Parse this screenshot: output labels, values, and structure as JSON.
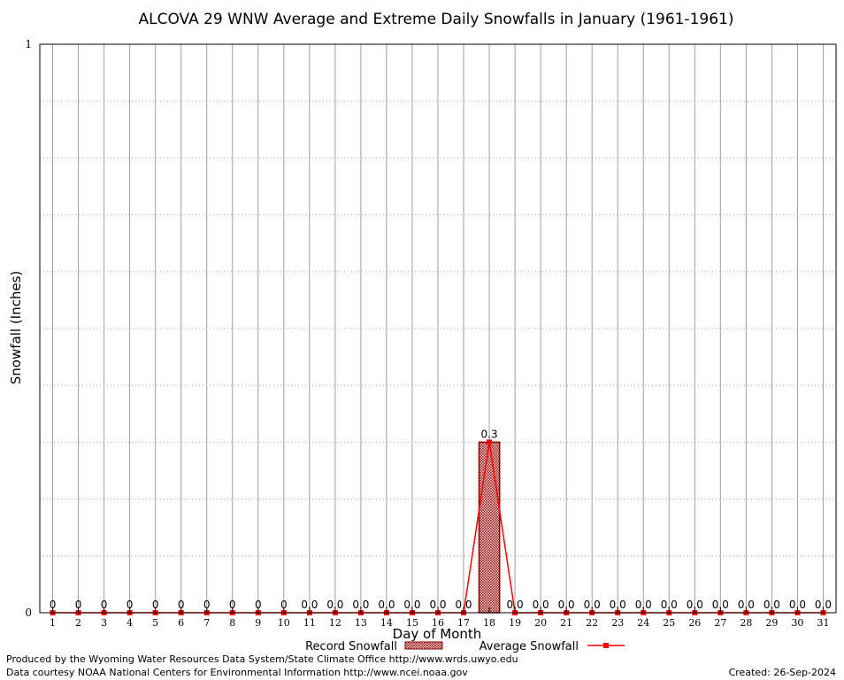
{
  "chart_data": {
    "type": "bar",
    "title": "ALCOVA 29 WNW Average and Extreme Daily Snowfalls in January (1961-1961)",
    "xlabel": "Day of Month",
    "ylabel": "Snowfall (Inches)",
    "ylim": [
      0,
      1
    ],
    "ytick_labels": [
      "0",
      "1"
    ],
    "grid": true,
    "legend_position": "bottom",
    "categories": [
      "1",
      "2",
      "3",
      "4",
      "5",
      "6",
      "7",
      "8",
      "9",
      "10",
      "11",
      "12",
      "13",
      "14",
      "15",
      "16",
      "17",
      "18",
      "19",
      "20",
      "21",
      "22",
      "23",
      "24",
      "25",
      "26",
      "27",
      "28",
      "29",
      "30",
      "31"
    ],
    "series": [
      {
        "name": "Record Snowfall",
        "kind": "bar",
        "color": "#b22222",
        "values": [
          0,
          0,
          0,
          0,
          0,
          0,
          0,
          0,
          0,
          0,
          0,
          0,
          0,
          0,
          0,
          0,
          0,
          0.3,
          0,
          0,
          0,
          0,
          0,
          0,
          0,
          0,
          0,
          0,
          0,
          0,
          0
        ]
      },
      {
        "name": "Average Snowfall",
        "kind": "line",
        "color": "#ff0000",
        "values": [
          0,
          0,
          0,
          0,
          0,
          0,
          0,
          0,
          0,
          0,
          0,
          0,
          0,
          0,
          0,
          0,
          0,
          0.3,
          0,
          0,
          0,
          0,
          0,
          0,
          0,
          0,
          0,
          0,
          0,
          0,
          0
        ]
      }
    ],
    "data_labels": [
      "0",
      "0",
      "0",
      "0",
      "0",
      "0",
      "0",
      "0",
      "0",
      "0",
      "0.0",
      "0.0",
      "0.0",
      "0.0",
      "0.0",
      "0.0",
      "0.0",
      "0.3",
      "0.0",
      "0.0",
      "0.0",
      "0.0",
      "0.0",
      "0.0",
      "0.0",
      "0.0",
      "0.0",
      "0.0",
      "0.0",
      "0.0",
      "0.0"
    ]
  },
  "footer": {
    "produced_by": "Produced by the Wyoming Water Resources Data System/State Climate Office http://www.wrds.uwyo.edu",
    "courtesy": "Data courtesy NOAA National Centers for Environmental Information http://www.ncei.noaa.gov",
    "created": "Created:  26-Sep-2024"
  }
}
